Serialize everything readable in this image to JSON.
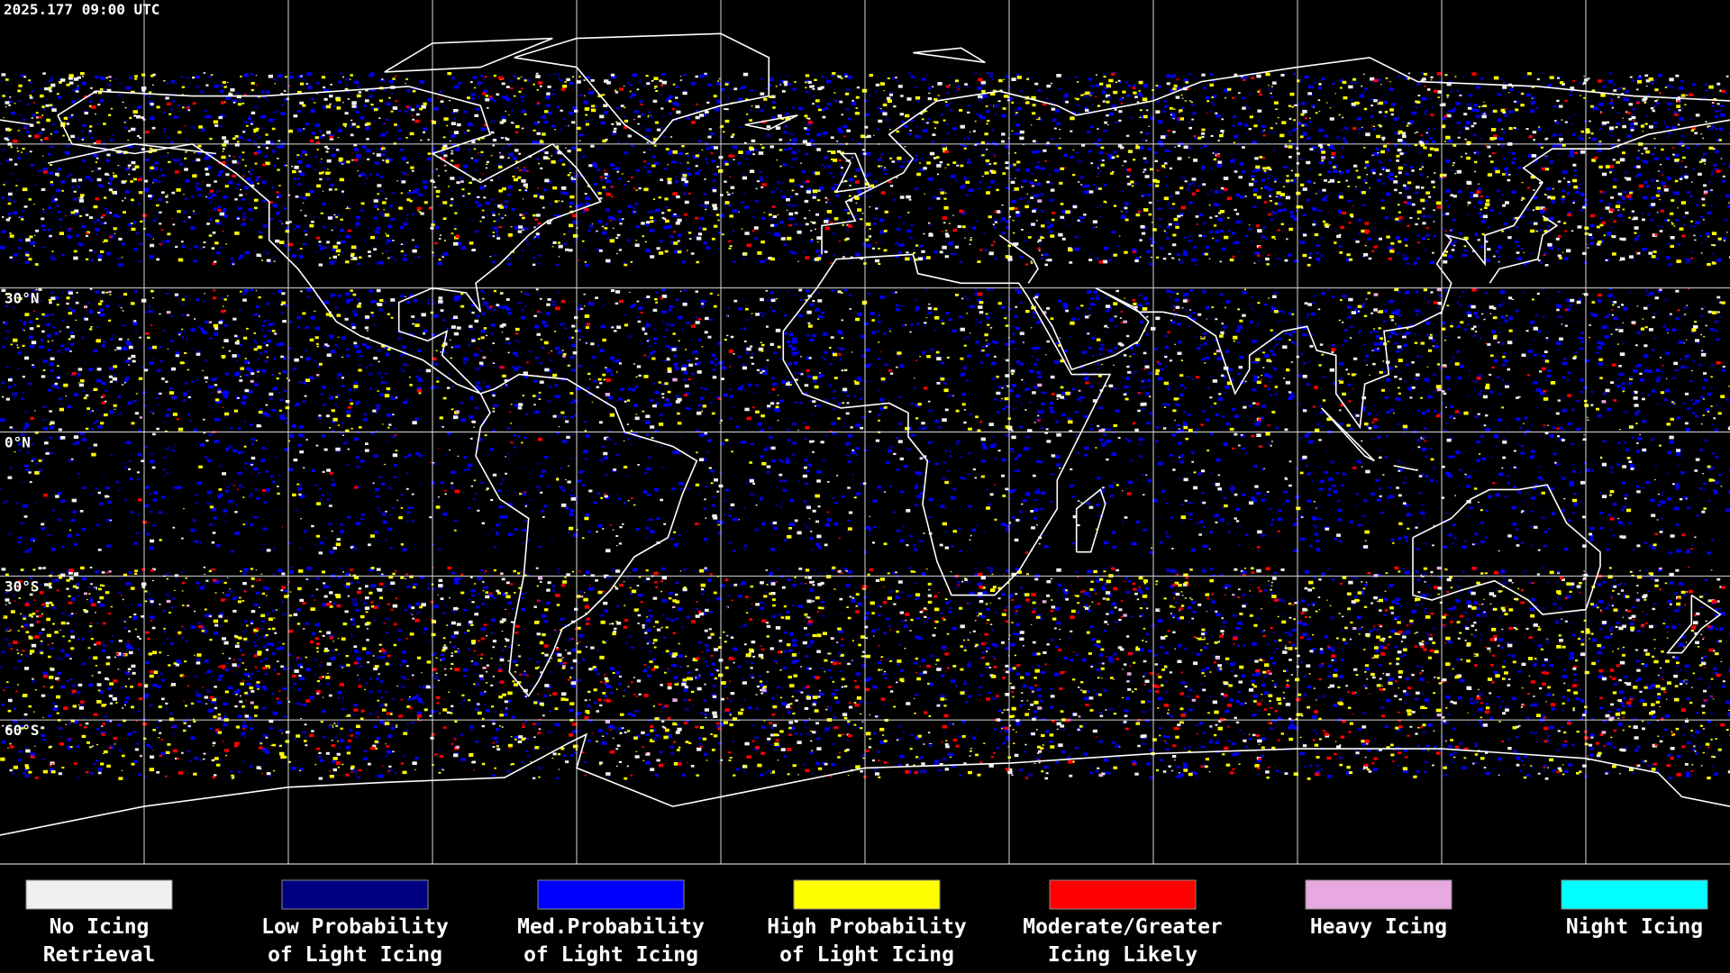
{
  "timestamp": "2025.177 09:00 UTC",
  "latitude_labels": [
    "30°N",
    "0°N",
    "30°S",
    "60°S"
  ],
  "legend": [
    {
      "label": [
        "No Icing",
        "Retrieval"
      ],
      "color": "#f0f0f0"
    },
    {
      "label": [
        "Low Probability",
        "of Light Icing"
      ],
      "color": "#000080"
    },
    {
      "label": [
        "Med.Probability",
        "of Light Icing"
      ],
      "color": "#0000ff"
    },
    {
      "label": [
        "High Probability",
        "of Light Icing"
      ],
      "color": "#ffff00"
    },
    {
      "label": [
        "Moderate/Greater",
        "Icing Likely"
      ],
      "color": "#ff0000"
    },
    {
      "label": [
        "Heavy Icing"
      ],
      "color": "#e8a8e0"
    },
    {
      "label": [
        "Night Icing"
      ],
      "color": "#00ffff"
    }
  ]
}
